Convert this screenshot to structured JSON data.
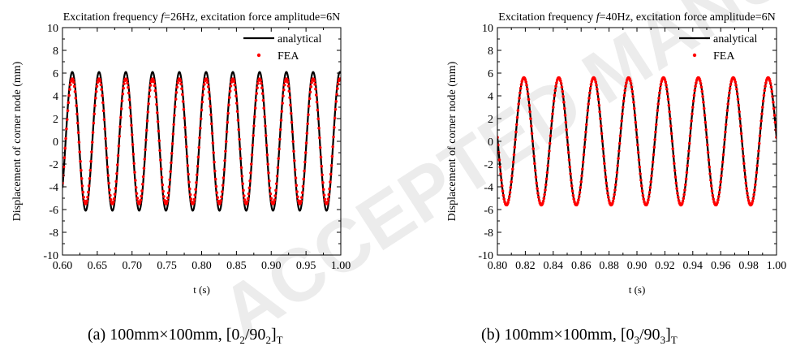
{
  "chart_data": [
    {
      "type": "line",
      "title": "Excitation frequency f=26Hz, excitation force amplitude=6N",
      "title_parts": {
        "prefix": "Excitation frequency ",
        "italic": "f",
        "suffix": "=26Hz, excitation force amplitude=6N"
      },
      "xlabel": "t (s)",
      "ylabel": "Displacement of corner node (mm)",
      "xlim": [
        0.6,
        1.0
      ],
      "ylim": [
        -10,
        10
      ],
      "xticks": [
        0.6,
        0.65,
        0.7,
        0.75,
        0.8,
        0.85,
        0.9,
        0.95,
        1.0
      ],
      "xtick_labels": [
        "0.60",
        "0.65",
        "0.70",
        "0.75",
        "0.80",
        "0.85",
        "0.90",
        "0.95",
        "1.00"
      ],
      "yticks": [
        -10,
        -8,
        -6,
        -4,
        -2,
        0,
        2,
        4,
        6,
        8,
        10
      ],
      "ytick_labels": [
        "-10",
        "-8",
        "-6",
        "-4",
        "-2",
        "0",
        "2",
        "4",
        "6",
        "8",
        "10"
      ],
      "legend_position": "top-right",
      "grid": false,
      "series": [
        {
          "name": "analytical",
          "style": "line",
          "color": "#000000",
          "amplitude": 6.1,
          "frequency_hz": 26,
          "phase_peak_t": 0.6141,
          "offset": 0
        },
        {
          "name": "FEA",
          "style": "dots",
          "color": "#ff0000",
          "amplitude": 5.5,
          "frequency_hz": 26,
          "phase_peak_t": 0.6141,
          "offset": 0
        }
      ]
    },
    {
      "type": "line",
      "title": "Excitation frequency f=40Hz, excitation force amplitude=6N",
      "title_parts": {
        "prefix": "Excitation frequency ",
        "italic": "f",
        "suffix": "=40Hz, excitation force amplitude=6N"
      },
      "xlabel": "t (s)",
      "ylabel": "Displacement of corner node (mm)",
      "xlim": [
        0.8,
        1.0
      ],
      "ylim": [
        -10,
        10
      ],
      "xticks": [
        0.8,
        0.82,
        0.84,
        0.86,
        0.88,
        0.9,
        0.92,
        0.94,
        0.96,
        0.98,
        1.0
      ],
      "xtick_labels": [
        "0.80",
        "0.82",
        "0.84",
        "0.86",
        "0.88",
        "0.90",
        "0.92",
        "0.94",
        "0.96",
        "0.98",
        "1.00"
      ],
      "yticks": [
        -10,
        -8,
        -6,
        -4,
        -2,
        0,
        2,
        4,
        6,
        8,
        10
      ],
      "ytick_labels": [
        "-10",
        "-8",
        "-6",
        "-4",
        "-2",
        "0",
        "2",
        "4",
        "6",
        "8",
        "10"
      ],
      "legend_position": "top-right",
      "grid": false,
      "series": [
        {
          "name": "analytical",
          "style": "line",
          "color": "#000000",
          "amplitude": 5.6,
          "frequency_hz": 40,
          "phase_peak_t": 0.819,
          "offset": 0
        },
        {
          "name": "FEA",
          "style": "dots",
          "color": "#ff0000",
          "amplitude": 5.6,
          "frequency_hz": 40,
          "phase_peak_t": 0.819,
          "offset": 0
        }
      ]
    }
  ],
  "captions": {
    "a": {
      "prefix": "(a) 100mm×100mm, [0",
      "s1": "2",
      "mid": "/90",
      "s2": "2",
      "end": "]",
      "s3": "T"
    },
    "b": {
      "prefix": "(b) 100mm×100mm, [0",
      "s1": "3",
      "mid": "/90",
      "s2": "3",
      "end": "]",
      "s3": "T"
    }
  },
  "watermark": {
    "text": "ACCEPTED MANUSCRIPT",
    "color": "#ececec"
  }
}
